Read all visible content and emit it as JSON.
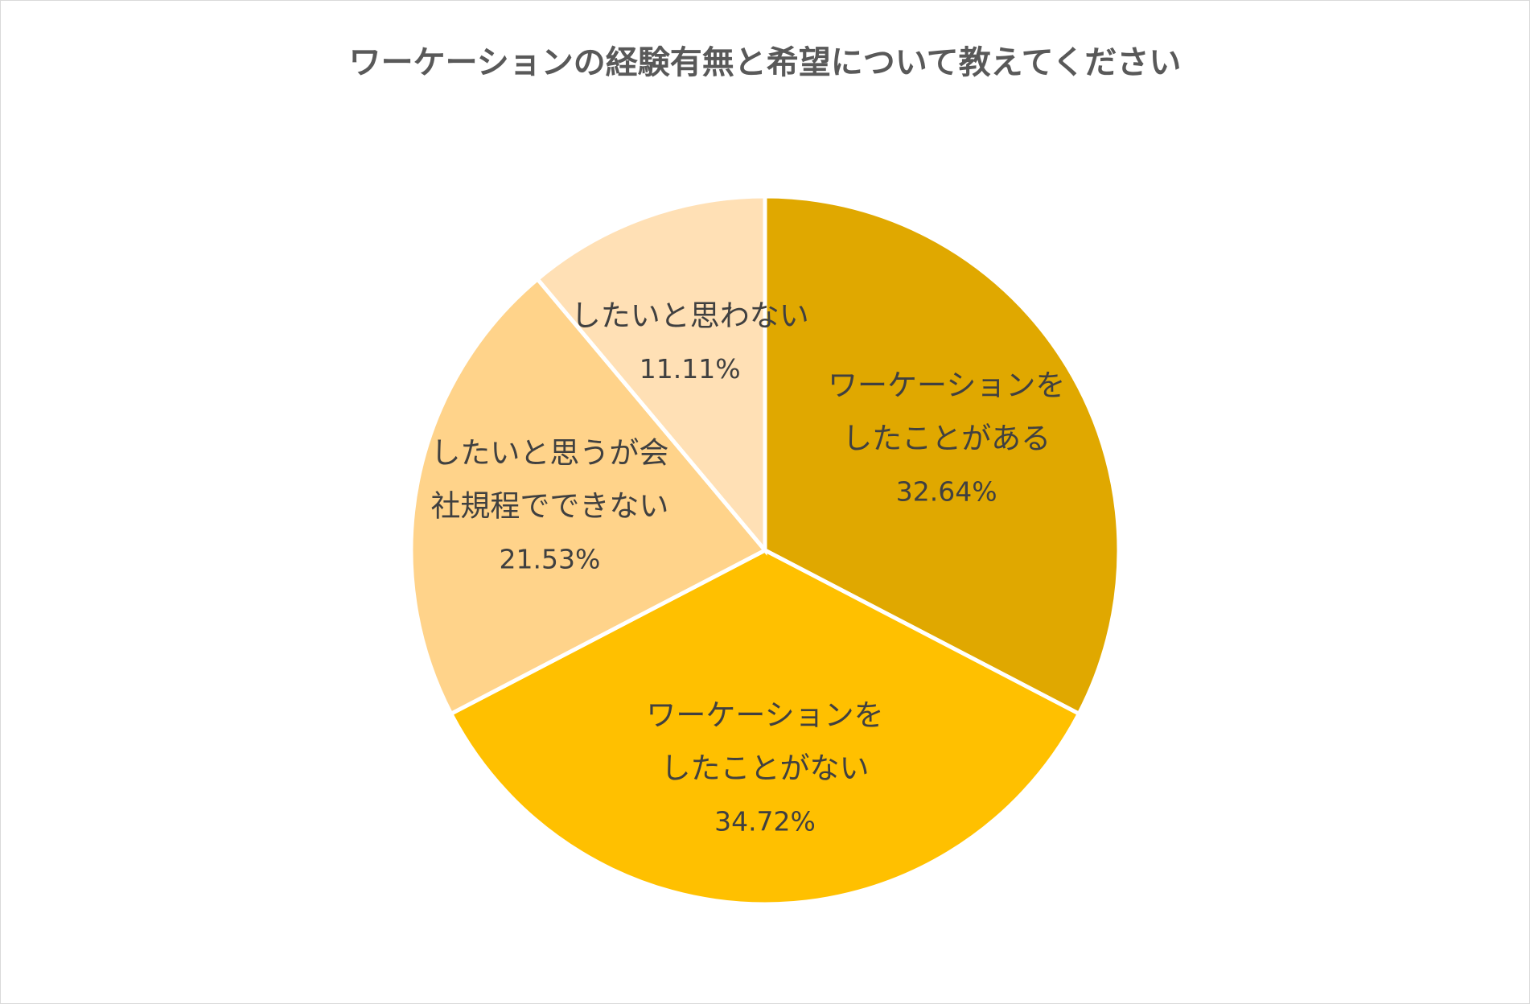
{
  "chart_data": {
    "type": "pie",
    "title": "ワーケーションの経験有無と希望について教えてください",
    "slices": [
      {
        "label": [
          "ワーケーションを",
          "したことがある"
        ],
        "value": 32.64,
        "value_label": "32.64%",
        "color": "#E0A800"
      },
      {
        "label": [
          "ワーケーションを",
          "したことがない"
        ],
        "value": 34.72,
        "value_label": "34.72%",
        "color": "#FFC000"
      },
      {
        "label": [
          "したいと思うが会",
          "社規程でできない"
        ],
        "value": 21.53,
        "value_label": "21.53%",
        "color": "#FFD38A"
      },
      {
        "label": [
          "したいと思わない"
        ],
        "value": 11.11,
        "value_label": "11.11%",
        "color": "#FFE0B5"
      }
    ],
    "legend": "none"
  }
}
